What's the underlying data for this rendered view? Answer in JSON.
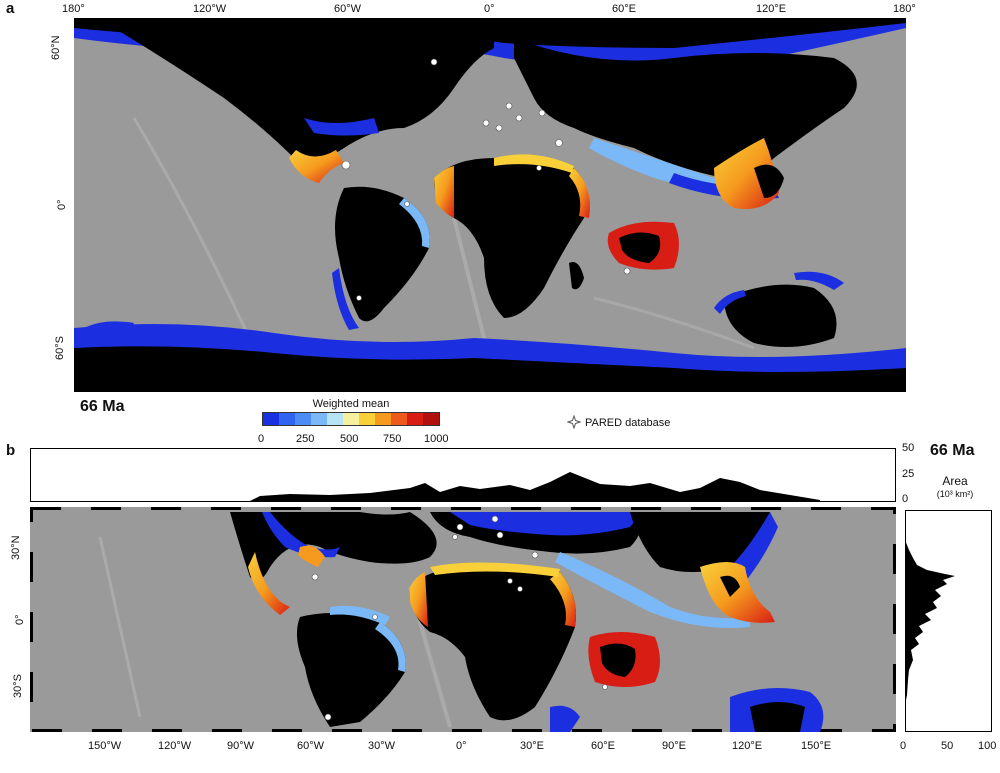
{
  "panel_a": {
    "letter": "a",
    "age_label": "66 Ma",
    "top_lon_ticks": [
      "180°",
      "120°W",
      "60°W",
      "0°",
      "60°E",
      "120°E",
      "180°"
    ],
    "left_lat_ticks": [
      "60°N",
      "0°",
      "60°S"
    ]
  },
  "colorbar": {
    "title": "Weighted mean",
    "ticks": [
      "0",
      "250",
      "500",
      "750",
      "1000"
    ],
    "colors": [
      "#1a2fe0",
      "#2f63f0",
      "#4c8df5",
      "#7ab8f7",
      "#b7e4f5",
      "#f5f0a0",
      "#f9d03a",
      "#f59a1e",
      "#ee5a1a",
      "#d81e14",
      "#b0100e"
    ]
  },
  "legend": {
    "label": "PARED database",
    "icon": "star-marker-icon"
  },
  "panel_b": {
    "letter": "b",
    "age_label": "66 Ma",
    "area_title": "Area",
    "area_unit": "(10³ km²)",
    "top_yticks": [
      "50",
      "25",
      "0"
    ],
    "right_xticks": [
      "0",
      "50",
      "100"
    ],
    "left_lat_ticks": [
      "30°N",
      "0°",
      "30°S"
    ],
    "bottom_lon_ticks": [
      "150°W",
      "120°W",
      "90°W",
      "60°W",
      "30°W",
      "0°",
      "30°E",
      "60°E",
      "90°E",
      "120°E",
      "150°E"
    ]
  },
  "colors": {
    "ocean": "#9a9a9a",
    "land": "#000000",
    "shelf_blue": "#1b2fe0",
    "hot": "#e8301a"
  }
}
